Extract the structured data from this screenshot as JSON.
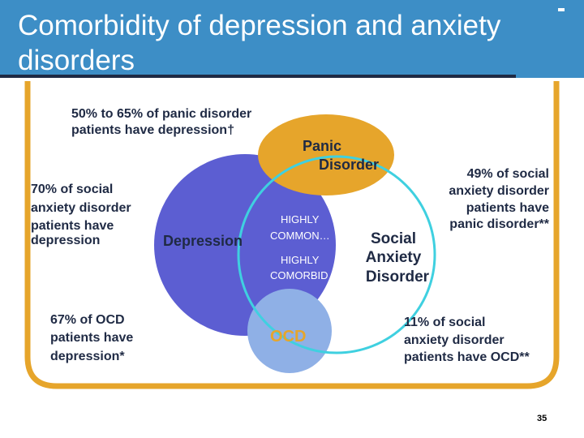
{
  "slide": {
    "title": "Comorbidity of depression and anxiety disorders",
    "page_number": "35"
  },
  "colors": {
    "title_bar": "#3d8ec6",
    "frame": "#e6a52b",
    "depression": "#5c5ed2",
    "panic_disorder": "#e6a52b",
    "social_anxiety_outline": "#3fd0e0",
    "ocd": "#8fb0e6",
    "text": "#1f2a44"
  },
  "circles": {
    "depression": "Depression",
    "panic_disorder": [
      "Panic",
      "Disorder"
    ],
    "social_anxiety": [
      "Social",
      "Anxiety",
      "Disorder"
    ],
    "ocd": "OCD"
  },
  "center_labels": {
    "highly_common": [
      "HIGHLY",
      "COMMON…"
    ],
    "highly_comorbid": [
      "HIGHLY",
      "COMORBID"
    ]
  },
  "stats": {
    "panic_depression": [
      "50% to 65% of panic disorder",
      "patients have depression†"
    ],
    "social_depression": [
      "70% of social",
      "anxiety disorder",
      "patients have",
      "depression"
    ],
    "ocd_depression": [
      "67% of OCD",
      "patients have",
      "depression*"
    ],
    "social_panic": [
      "49% of social",
      "anxiety disorder",
      "patients have",
      "panic disorder**"
    ],
    "social_ocd": [
      "11% of social",
      "anxiety disorder",
      "patients have OCD**"
    ]
  }
}
